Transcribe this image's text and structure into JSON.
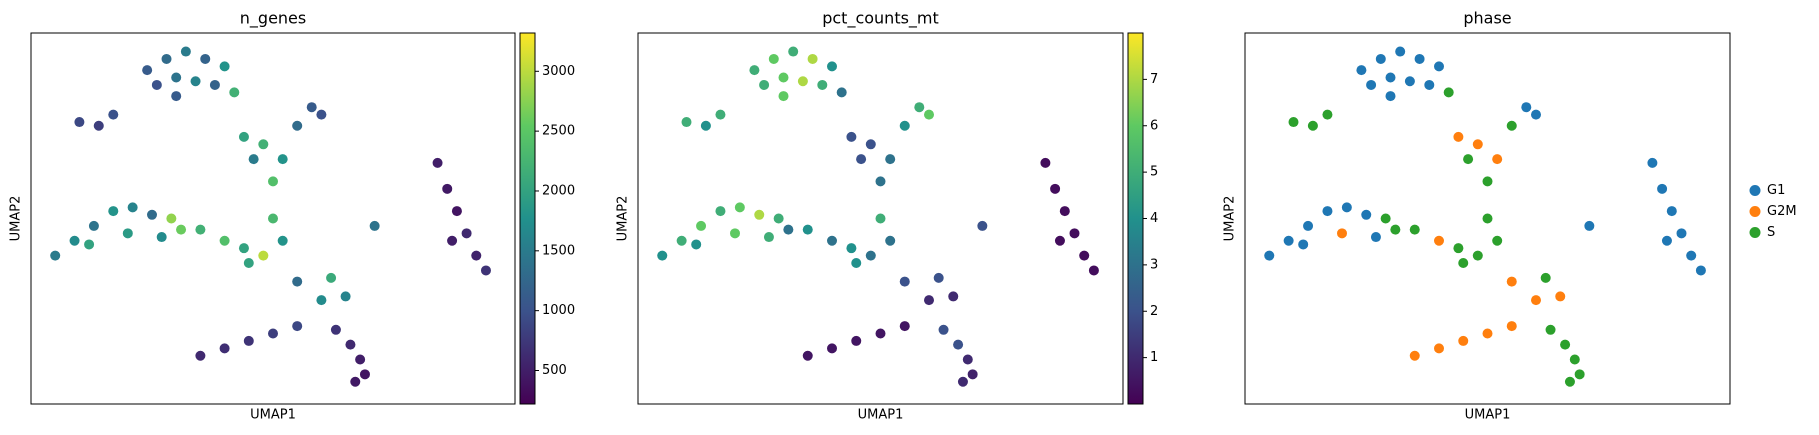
{
  "chart_data": [
    {
      "type": "scatter",
      "title": "n_genes",
      "x_label": "UMAP1",
      "y_label": "UMAP2",
      "colormap": "viridis",
      "xlim": [
        0,
        100
      ],
      "ylim": [
        0,
        100
      ],
      "clim": [
        220,
        3320
      ],
      "cticks": [
        500,
        1000,
        1500,
        2000,
        2500,
        3000
      ],
      "x": [
        24,
        28,
        32,
        36,
        40,
        26,
        30,
        34,
        38,
        42,
        30,
        10,
        14,
        17,
        44,
        48,
        52,
        46,
        55,
        58,
        60,
        50,
        84,
        86,
        88,
        90,
        92,
        94,
        87,
        71,
        5,
        9,
        13,
        17,
        21,
        25,
        29,
        12,
        20,
        27,
        31,
        35,
        40,
        44,
        48,
        52,
        50,
        55,
        60,
        65,
        62,
        45,
        35,
        40,
        45,
        50,
        55,
        63,
        66,
        68,
        69,
        67
      ],
      "y": [
        90,
        93,
        95,
        93,
        91,
        86,
        88,
        87,
        86,
        84,
        83,
        76,
        75,
        78,
        72,
        70,
        66,
        66,
        75,
        80,
        78,
        60,
        65,
        58,
        52,
        46,
        40,
        36,
        44,
        48,
        40,
        44,
        48,
        52,
        53,
        51,
        50,
        43,
        46,
        45,
        47,
        47,
        44,
        42,
        40,
        44,
        50,
        33,
        28,
        29,
        34,
        38,
        13,
        15,
        17,
        19,
        21,
        20,
        16,
        12,
        8,
        6
      ],
      "values": [
        1100,
        1300,
        1500,
        1200,
        1800,
        1000,
        1400,
        1600,
        1200,
        2200,
        1100,
        900,
        800,
        1000,
        2000,
        2200,
        1800,
        1500,
        1300,
        1100,
        1000,
        2400,
        500,
        450,
        400,
        600,
        550,
        700,
        500,
        1400,
        1500,
        1700,
        1400,
        1800,
        1600,
        1300,
        2800,
        2000,
        1900,
        1700,
        2600,
        2200,
        2400,
        2000,
        3000,
        1800,
        2300,
        1300,
        1700,
        1600,
        2100,
        2000,
        600,
        650,
        700,
        800,
        900,
        700,
        600,
        500,
        400,
        450
      ]
    },
    {
      "type": "scatter",
      "title": "pct_counts_mt",
      "x_label": "UMAP1",
      "y_label": "UMAP2",
      "colormap": "viridis",
      "xlim": [
        0,
        100
      ],
      "ylim": [
        0,
        100
      ],
      "clim": [
        0,
        8
      ],
      "cticks": [
        1,
        2,
        3,
        4,
        5,
        6,
        7
      ],
      "x": [
        24,
        28,
        32,
        36,
        40,
        26,
        30,
        34,
        38,
        42,
        30,
        10,
        14,
        17,
        44,
        48,
        52,
        46,
        55,
        58,
        60,
        50,
        84,
        86,
        88,
        90,
        92,
        94,
        87,
        71,
        5,
        9,
        13,
        17,
        21,
        25,
        29,
        12,
        20,
        27,
        31,
        35,
        40,
        44,
        48,
        52,
        50,
        55,
        60,
        65,
        62,
        45,
        35,
        40,
        45,
        50,
        55,
        63,
        66,
        68,
        69,
        67
      ],
      "y": [
        90,
        93,
        95,
        93,
        91,
        86,
        88,
        87,
        86,
        84,
        83,
        76,
        75,
        78,
        72,
        70,
        66,
        66,
        75,
        80,
        78,
        60,
        65,
        58,
        52,
        46,
        40,
        36,
        44,
        48,
        40,
        44,
        48,
        52,
        53,
        51,
        50,
        43,
        46,
        45,
        47,
        47,
        44,
        42,
        40,
        44,
        50,
        33,
        28,
        29,
        34,
        38,
        13,
        15,
        17,
        19,
        21,
        20,
        16,
        12,
        8,
        6
      ],
      "values": [
        5,
        6,
        5,
        7,
        4,
        5,
        6,
        7,
        5,
        3,
        6,
        5,
        4,
        5,
        2,
        2,
        3,
        2,
        4,
        5,
        6,
        3,
        0.3,
        0.3,
        0.3,
        0.3,
        0.3,
        0.3,
        0.3,
        2,
        4,
        5,
        6,
        5,
        6,
        7,
        5,
        4,
        6,
        5,
        3,
        4,
        3,
        4,
        3,
        3,
        5,
        2,
        1,
        1,
        2,
        4,
        0.5,
        0.5,
        0.5,
        0.5,
        0.5,
        2,
        2,
        1,
        0.8,
        1
      ]
    },
    {
      "type": "scatter",
      "title": "phase",
      "x_label": "UMAP1",
      "y_label": "UMAP2",
      "xlim": [
        0,
        100
      ],
      "ylim": [
        0,
        100
      ],
      "legend": "right",
      "series": [
        {
          "name": "G1",
          "color": "#1f77b4",
          "x": [
            24,
            28,
            32,
            36,
            40,
            26,
            30,
            34,
            38,
            30,
            58,
            60,
            84,
            86,
            88,
            90,
            92,
            94,
            87,
            71,
            5,
            9,
            13,
            17,
            21,
            25,
            12,
            27
          ],
          "y": [
            90,
            93,
            95,
            93,
            91,
            86,
            88,
            87,
            86,
            83,
            80,
            78,
            65,
            58,
            52,
            46,
            40,
            36,
            44,
            48,
            40,
            44,
            48,
            52,
            53,
            51,
            43,
            45
          ]
        },
        {
          "name": "G2M",
          "color": "#ff7f0e",
          "x": [
            44,
            48,
            52,
            20,
            40,
            55,
            60,
            65,
            35,
            40,
            45,
            50,
            55
          ],
          "y": [
            72,
            70,
            66,
            46,
            44,
            33,
            28,
            29,
            13,
            15,
            17,
            19,
            21
          ]
        },
        {
          "name": "S",
          "color": "#2ca02c",
          "x": [
            42,
            10,
            14,
            17,
            46,
            55,
            50,
            29,
            31,
            35,
            44,
            48,
            52,
            50,
            62,
            45,
            63,
            66,
            68,
            69,
            67
          ],
          "y": [
            84,
            76,
            75,
            78,
            66,
            75,
            60,
            50,
            47,
            47,
            42,
            40,
            44,
            50,
            34,
            38,
            20,
            16,
            12,
            8,
            6
          ]
        }
      ]
    }
  ]
}
